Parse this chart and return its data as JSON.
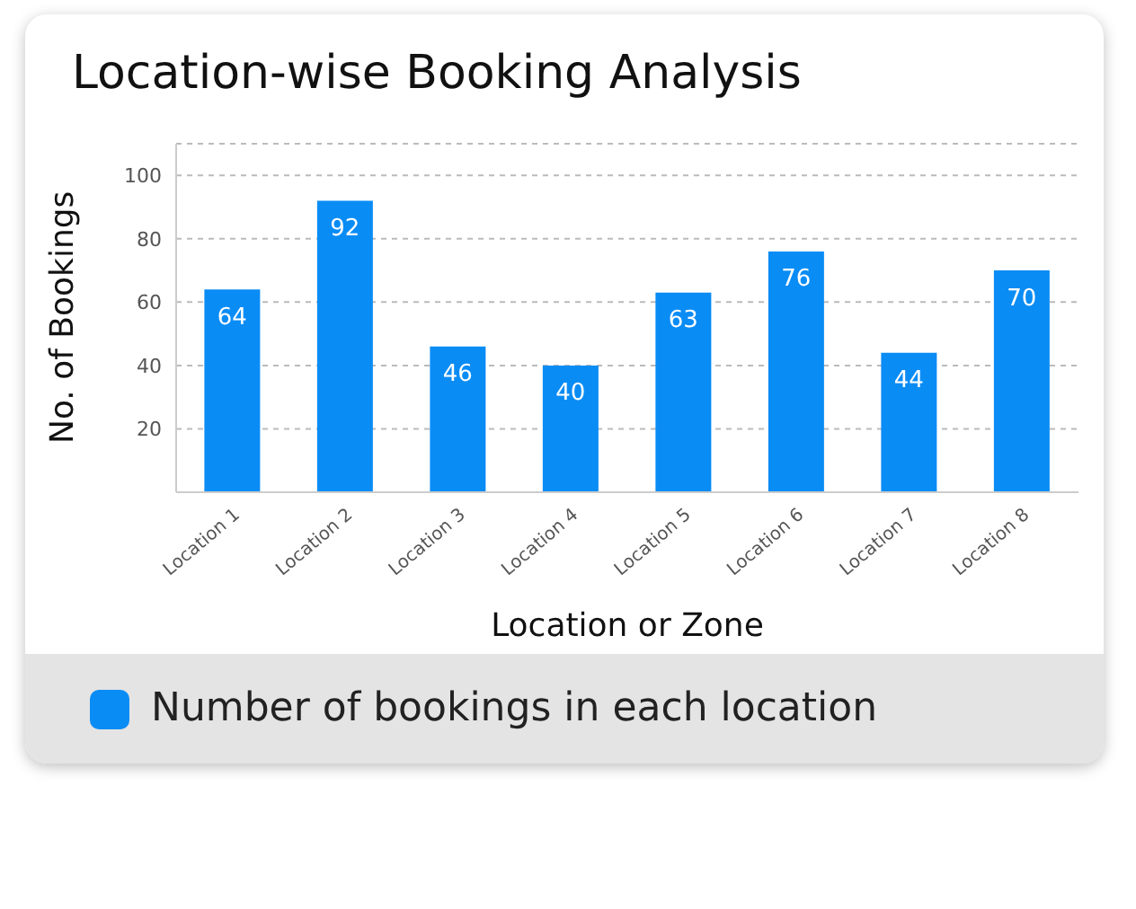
{
  "chart_data": {
    "type": "bar",
    "title": "Location-wise Booking Analysis",
    "xlabel": "Location or Zone",
    "ylabel": "No. of Bookings",
    "categories": [
      "Location 1",
      "Location 2",
      "Location 3",
      "Location 4",
      "Location 5",
      "Location 6",
      "Location 7",
      "Location 8"
    ],
    "series": [
      {
        "name": "Number of bookings in each location",
        "color": "#0a8cf5",
        "values": [
          64,
          92,
          46,
          40,
          63,
          76,
          44,
          70
        ]
      }
    ],
    "ylim": [
      0,
      110
    ],
    "yticks": [
      {
        "value": 0,
        "label": null
      },
      20,
      40,
      60,
      80,
      100
    ],
    "grid": "y",
    "data_labels": true,
    "legend": "bottom"
  }
}
